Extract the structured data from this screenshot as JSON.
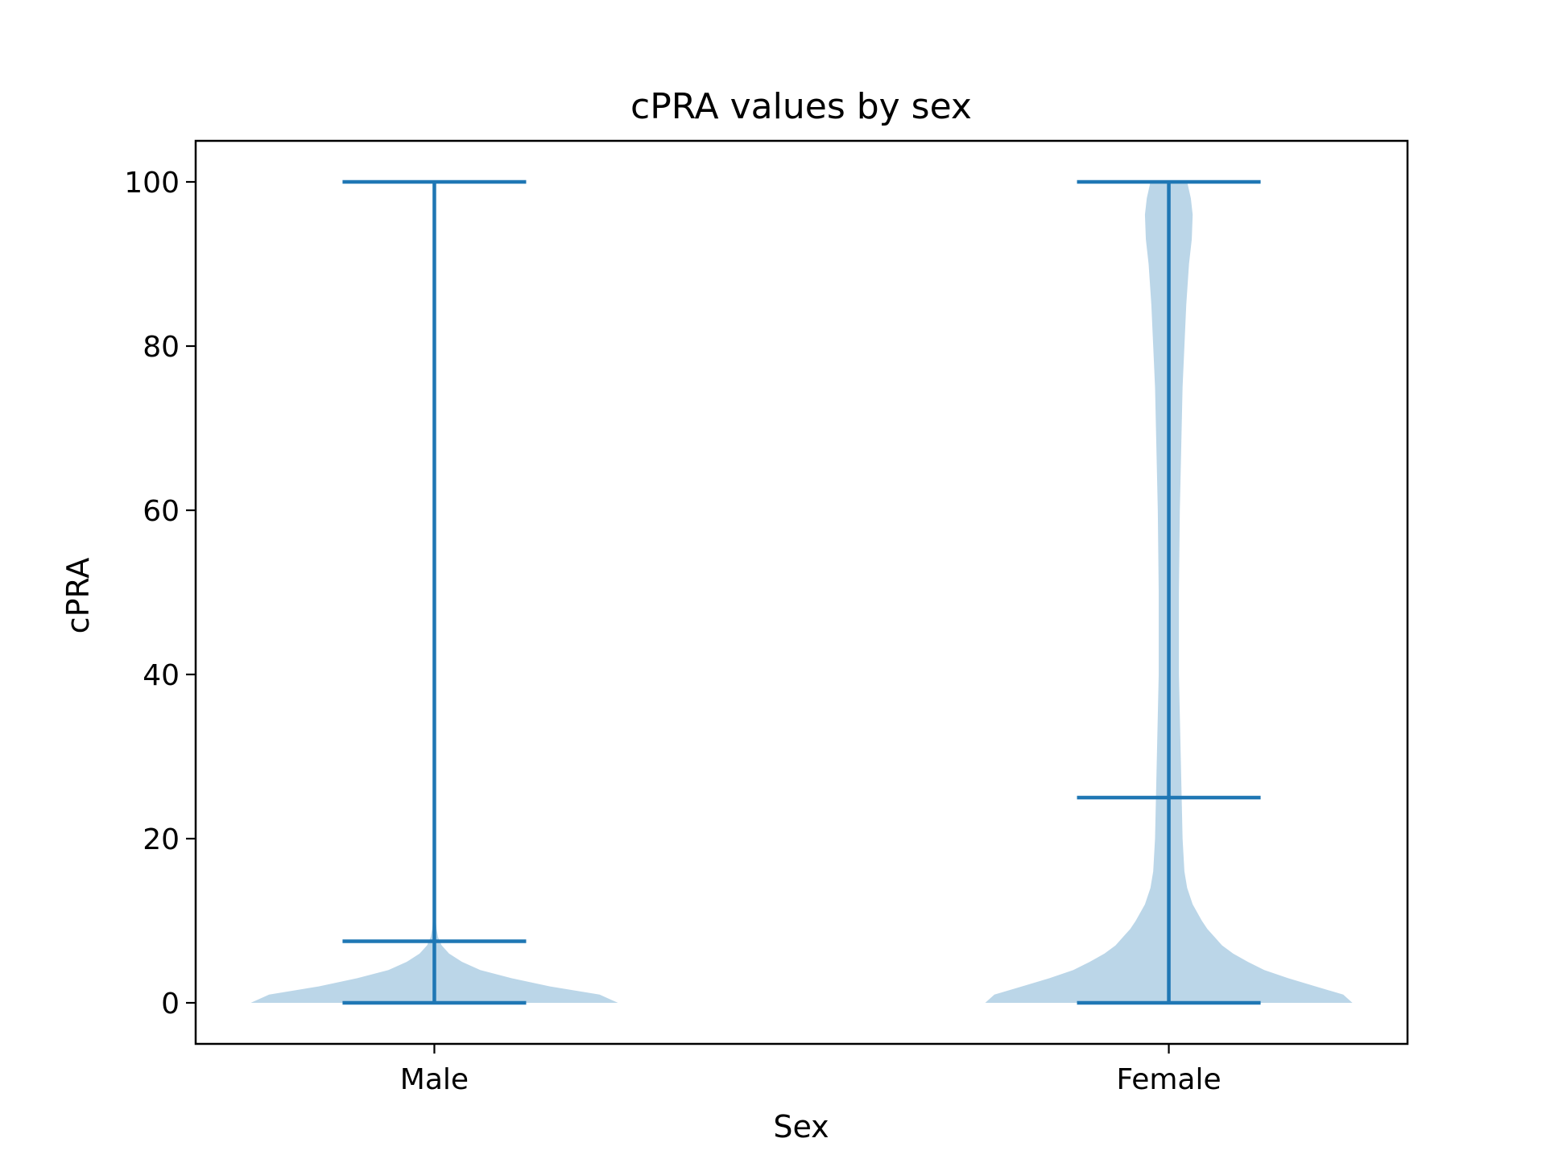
{
  "chart_data": {
    "type": "violin",
    "title": "cPRA values by sex",
    "xlabel": "Sex",
    "ylabel": "cPRA",
    "categories": [
      "Male",
      "Female"
    ],
    "ylim": [
      -5,
      105
    ],
    "yticks": [
      0,
      20,
      40,
      60,
      80,
      100
    ],
    "grid": false,
    "colors": {
      "body": "#1f77b4",
      "body_alpha": 0.3,
      "lines": "#1f77b4"
    },
    "violins": [
      {
        "name": "Male",
        "min": 0,
        "median": 7.5,
        "max": 100,
        "density": [
          [
            0,
            1.0
          ],
          [
            1,
            0.9
          ],
          [
            2,
            0.63
          ],
          [
            3,
            0.42
          ],
          [
            4,
            0.25
          ],
          [
            5,
            0.15
          ],
          [
            6,
            0.08
          ],
          [
            7,
            0.04
          ],
          [
            8,
            0.02
          ],
          [
            9,
            0.012
          ],
          [
            10,
            0.008
          ],
          [
            12,
            0.005
          ],
          [
            15,
            0.004
          ],
          [
            20,
            0.004
          ],
          [
            25,
            0.004
          ],
          [
            30,
            0.004
          ],
          [
            40,
            0.003
          ],
          [
            50,
            0.003
          ],
          [
            60,
            0.003
          ],
          [
            70,
            0.003
          ],
          [
            80,
            0.003
          ],
          [
            90,
            0.004
          ],
          [
            95,
            0.005
          ],
          [
            100,
            0.008
          ]
        ]
      },
      {
        "name": "Female",
        "min": 0,
        "median": 25,
        "max": 100,
        "density": [
          [
            0,
            1.0
          ],
          [
            1,
            0.95
          ],
          [
            2,
            0.8
          ],
          [
            3,
            0.65
          ],
          [
            4,
            0.52
          ],
          [
            5,
            0.43
          ],
          [
            6,
            0.35
          ],
          [
            7,
            0.29
          ],
          [
            8,
            0.25
          ],
          [
            9,
            0.21
          ],
          [
            10,
            0.18
          ],
          [
            12,
            0.13
          ],
          [
            14,
            0.1
          ],
          [
            16,
            0.085
          ],
          [
            20,
            0.075
          ],
          [
            25,
            0.07
          ],
          [
            30,
            0.065
          ],
          [
            40,
            0.055
          ],
          [
            50,
            0.055
          ],
          [
            60,
            0.06
          ],
          [
            70,
            0.07
          ],
          [
            75,
            0.075
          ],
          [
            80,
            0.085
          ],
          [
            85,
            0.095
          ],
          [
            90,
            0.11
          ],
          [
            93,
            0.125
          ],
          [
            96,
            0.13
          ],
          [
            98,
            0.12
          ],
          [
            100,
            0.1
          ]
        ]
      }
    ]
  }
}
